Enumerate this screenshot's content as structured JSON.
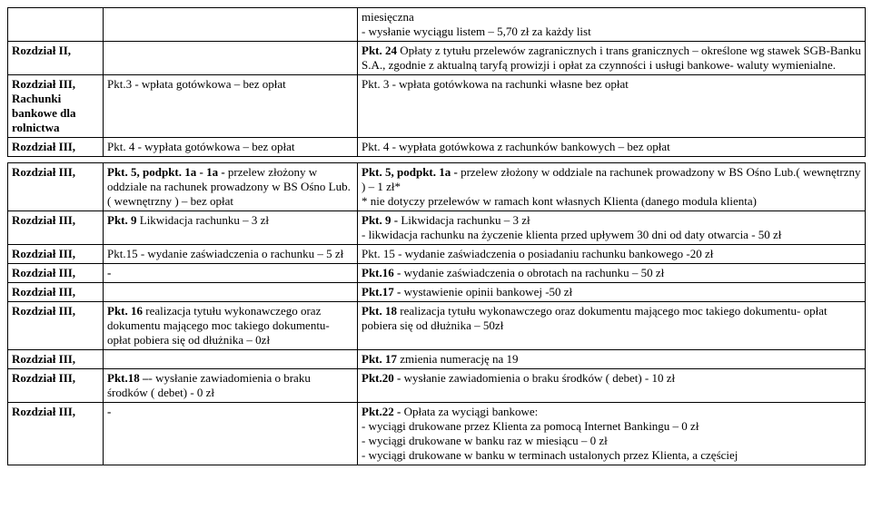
{
  "rows": [
    {
      "c1": [
        {
          "t": "",
          "b": false
        }
      ],
      "c2": [
        {
          "t": "",
          "b": false
        }
      ],
      "c3": [
        {
          "t": "miesięczna",
          "b": false
        },
        {
          "t": "- wysłanie wyciągu listem – 5,70 zł za każdy list",
          "b": false
        }
      ]
    },
    {
      "c1": [
        {
          "t": "Rozdział II,",
          "b": true
        }
      ],
      "c2": [
        {
          "t": "",
          "b": false
        }
      ],
      "c3": [
        {
          "t": "Pkt. 24 ",
          "b": true,
          "inline": true
        },
        {
          "t": "Opłaty z tytułu przelewów zagranicznych i trans granicznych – określone wg stawek SGB-Banku S.A., zgodnie z aktualną taryfą prowizji i opłat za czynności i usługi bankowe- waluty wymienialne.",
          "b": false
        }
      ]
    },
    {
      "c1": [
        {
          "t": "Rozdział III, Rachunki bankowe dla rolnictwa",
          "b": true
        }
      ],
      "c2": [
        {
          "t": "Pkt.3 - wpłata gotówkowa – bez opłat",
          "b": false
        }
      ],
      "c3": [
        {
          "t": "Pkt. 3 - wpłata gotówkowa na rachunki własne  bez opłat",
          "b": false
        }
      ]
    },
    {
      "c1": [
        {
          "t": "Rozdział III,",
          "b": true
        }
      ],
      "c2": [
        {
          "t": "Pkt. 4 - wypłata gotówkowa – bez opłat",
          "b": false
        }
      ],
      "c3": [
        {
          "t": "Pkt. 4 - wypłata gotówkowa z rachunków bankowych – bez opłat",
          "b": false
        }
      ]
    },
    {
      "spacer": true
    },
    {
      "c1": [
        {
          "t": "Rozdział III,",
          "b": true
        }
      ],
      "c2": [
        {
          "t": "Pkt. 5, podpkt. 1a - 1a - ",
          "b": true,
          "inline": true
        },
        {
          "t": "przelew złożony w oddziale na rachunek prowadzony w BS Ośno Lub.( wewnętrzny ) – bez opłat",
          "b": false
        }
      ],
      "c3": [
        {
          "t": "Pkt. 5, podpkt. 1a - ",
          "b": true,
          "inline": true
        },
        {
          "t": "przelew złożony w oddziale na rachunek prowadzony w BS Ośno Lub.( wewnętrzny ) – 1 zł*",
          "b": false
        },
        {
          "t": "* nie dotyczy przelewów  w ramach kont własnych Klienta (danego modula klienta)",
          "b": false
        }
      ]
    },
    {
      "c1": [
        {
          "t": "Rozdział III,",
          "b": true
        }
      ],
      "c2": [
        {
          "t": "Pkt. 9 ",
          "b": true,
          "inline": true
        },
        {
          "t": "Likwidacja rachunku – 3 zł",
          "b": false
        }
      ],
      "c3": [
        {
          "t": "Pkt. 9 - ",
          "b": true,
          "inline": true
        },
        {
          "t": "Likwidacja rachunku – 3 zł",
          "b": false
        },
        {
          "t": " - likwidacja rachunku na życzenie klienta przed upływem 30 dni od daty otwarcia - 50 zł",
          "b": false
        }
      ]
    },
    {
      "c1": [
        {
          "t": "Rozdział III,",
          "b": true
        }
      ],
      "c2": [
        {
          "t": "Pkt.15 -  wydanie zaświadczenia  o rachunku – 5 zł",
          "b": false
        }
      ],
      "c3": [
        {
          "t": "Pkt. 15 -  wydanie zaświadczenia o posiadaniu rachunku bankowego -20 zł",
          "b": false
        }
      ]
    },
    {
      "c1": [
        {
          "t": "Rozdział III,",
          "b": true
        }
      ],
      "c2": [
        {
          "t": "-",
          "b": true
        }
      ],
      "c3": [
        {
          "t": "Pkt.16 - ",
          "b": true,
          "inline": true
        },
        {
          "t": "wydanie zaświadczenia o obrotach na rachunku – 50 zł",
          "b": false
        }
      ]
    },
    {
      "c1": [
        {
          "t": "Rozdział III,",
          "b": true
        }
      ],
      "c2": [
        {
          "t": "",
          "b": false
        }
      ],
      "c3": [
        {
          "t": "Pkt.17 - ",
          "b": true,
          "inline": true
        },
        {
          "t": "wystawienie opinii bankowej   -50 zł",
          "b": false
        }
      ]
    },
    {
      "c1": [
        {
          "t": "Rozdział III,",
          "b": true
        }
      ],
      "c2": [
        {
          "t": "Pkt. 16 ",
          "b": true,
          "inline": true
        },
        {
          "t": "realizacja tytułu wykonawczego oraz dokumentu mającego moc takiego dokumentu- opłat pobiera się od dłużnika – 0zł",
          "b": false
        }
      ],
      "c3": [
        {
          "t": "Pkt. 18 ",
          "b": true,
          "inline": true
        },
        {
          "t": "realizacja tytułu wykonawczego oraz dokumentu mającego moc takiego dokumentu- opłat pobiera się od dłużnika – 50zł",
          "b": false
        }
      ]
    },
    {
      "c1": [
        {
          "t": "Rozdział III,",
          "b": true
        }
      ],
      "c2": [
        {
          "t": "",
          "b": false
        }
      ],
      "c3": [
        {
          "t": "Pkt. 17 ",
          "b": true,
          "inline": true
        },
        {
          "t": "zmienia numerację na 19",
          "b": false
        }
      ]
    },
    {
      "c1": [
        {
          "t": "Rozdział III,",
          "b": true
        }
      ],
      "c2": [
        {
          "t": "Pkt.18 –",
          "b": true,
          "inline": true
        },
        {
          "t": "- wysłanie zawiadomienia o braku środków ( debet) - 0 zł",
          "b": false
        }
      ],
      "c3": [
        {
          "t": "Pkt.20 -  ",
          "b": true,
          "inline": true
        },
        {
          "t": "wysłanie zawiadomienia o braku środków ( debet) - 10 zł",
          "b": false
        }
      ]
    },
    {
      "c1": [
        {
          "t": "Rozdział III,",
          "b": true
        }
      ],
      "c2": [
        {
          "t": "-",
          "b": true
        }
      ],
      "c3": [
        {
          "t": "Pkt.22 - ",
          "b": true,
          "inline": true
        },
        {
          "t": "Opłata za wyciągi bankowe:",
          "b": false
        },
        {
          "t": "- wyciągi drukowane przez Klienta za pomocą Internet Bankingu – 0 zł",
          "b": false
        },
        {
          "t": "- wyciągi drukowane w banku raz w miesiącu – 0 zł",
          "b": false
        },
        {
          "t": "- wyciągi drukowane w banku w  terminach ustalonych przez Klienta, a częściej",
          "b": false
        }
      ]
    }
  ]
}
